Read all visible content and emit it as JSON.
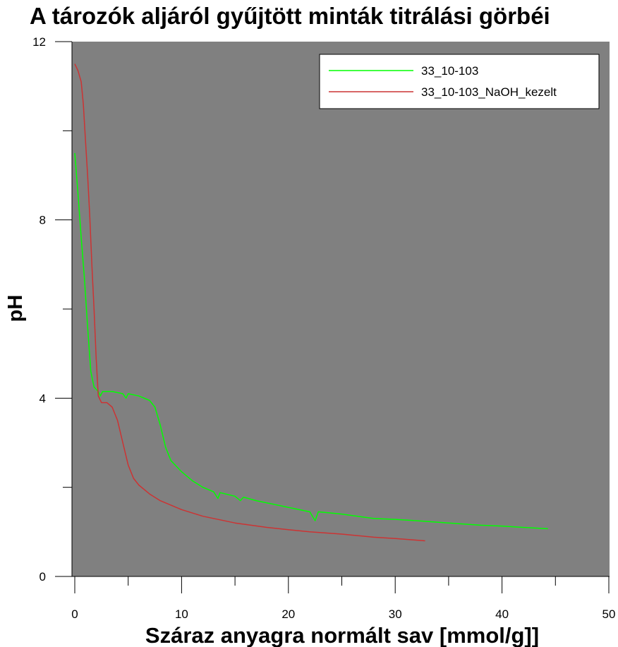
{
  "chart_data": {
    "type": "line",
    "title": "A tározók aljáról gyűjtött minták titrálási görbéi",
    "xlabel": "Száraz anyagra normált sav [mmol/g]]",
    "ylabel": "pH",
    "xlim": [
      0,
      50
    ],
    "ylim": [
      0,
      12
    ],
    "x_major_ticks": [
      0,
      10,
      20,
      30,
      40,
      50
    ],
    "x_minor_ticks": [
      5,
      15,
      25,
      35,
      45
    ],
    "y_major_ticks": [
      0,
      4,
      8,
      12
    ],
    "y_minor_ticks": [
      2,
      6,
      10
    ],
    "grid": false,
    "legend_position": "top-right",
    "plot_background": "#808080",
    "series": [
      {
        "name": "33_10-103",
        "color": "#00ff00",
        "points": [
          [
            0,
            9.5
          ],
          [
            0.3,
            8.6
          ],
          [
            0.6,
            7.6
          ],
          [
            0.9,
            6.7
          ],
          [
            1.2,
            5.6
          ],
          [
            1.5,
            4.6
          ],
          [
            1.8,
            4.25
          ],
          [
            2.2,
            4.15
          ],
          [
            2.4,
            4.05
          ],
          [
            2.6,
            4.15
          ],
          [
            3.5,
            4.15
          ],
          [
            4.5,
            4.1
          ],
          [
            4.8,
            4.0
          ],
          [
            5.0,
            4.1
          ],
          [
            6.0,
            4.05
          ],
          [
            7.0,
            3.95
          ],
          [
            7.5,
            3.8
          ],
          [
            8.0,
            3.4
          ],
          [
            8.5,
            2.9
          ],
          [
            9.0,
            2.6
          ],
          [
            10.0,
            2.35
          ],
          [
            11.0,
            2.15
          ],
          [
            12.0,
            2.0
          ],
          [
            13.0,
            1.9
          ],
          [
            13.4,
            1.75
          ],
          [
            13.6,
            1.88
          ],
          [
            15.0,
            1.8
          ],
          [
            15.5,
            1.7
          ],
          [
            15.8,
            1.78
          ],
          [
            17.0,
            1.7
          ],
          [
            20.0,
            1.55
          ],
          [
            22.0,
            1.45
          ],
          [
            22.5,
            1.25
          ],
          [
            22.8,
            1.45
          ],
          [
            25.0,
            1.4
          ],
          [
            28.0,
            1.3
          ],
          [
            30.0,
            1.28
          ],
          [
            32.0,
            1.25
          ],
          [
            35.0,
            1.2
          ],
          [
            38.0,
            1.15
          ],
          [
            40.0,
            1.13
          ],
          [
            42.0,
            1.1
          ],
          [
            44.3,
            1.07
          ]
        ]
      },
      {
        "name": "33_10-103_NaOH_kezelt",
        "color": "#cc3333",
        "points": [
          [
            0,
            11.5
          ],
          [
            0.3,
            11.35
          ],
          [
            0.6,
            11.1
          ],
          [
            0.8,
            10.6
          ],
          [
            1.0,
            9.8
          ],
          [
            1.2,
            9.0
          ],
          [
            1.4,
            8.1
          ],
          [
            1.6,
            7.0
          ],
          [
            1.8,
            6.0
          ],
          [
            2.0,
            4.9
          ],
          [
            2.2,
            4.05
          ],
          [
            2.5,
            3.9
          ],
          [
            3.0,
            3.9
          ],
          [
            3.5,
            3.8
          ],
          [
            4.0,
            3.5
          ],
          [
            4.5,
            3.0
          ],
          [
            5.0,
            2.5
          ],
          [
            5.5,
            2.2
          ],
          [
            6.0,
            2.05
          ],
          [
            7.0,
            1.85
          ],
          [
            8.0,
            1.7
          ],
          [
            10.0,
            1.5
          ],
          [
            12.0,
            1.35
          ],
          [
            15.0,
            1.2
          ],
          [
            18.0,
            1.1
          ],
          [
            20.0,
            1.05
          ],
          [
            22.0,
            1.0
          ],
          [
            25.0,
            0.95
          ],
          [
            28.0,
            0.88
          ],
          [
            30.0,
            0.85
          ],
          [
            32.8,
            0.8
          ]
        ]
      }
    ]
  }
}
